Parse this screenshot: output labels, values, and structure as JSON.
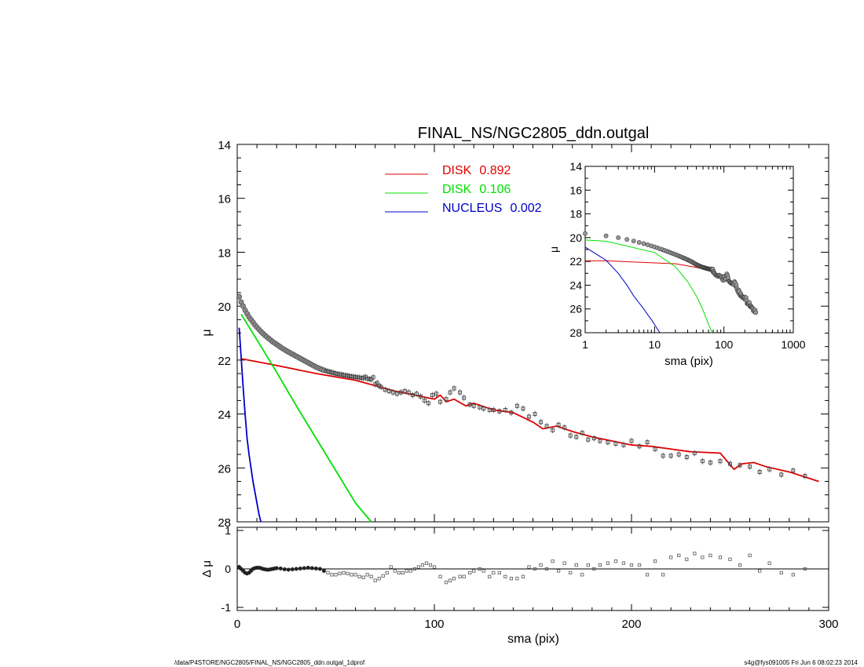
{
  "colors": {
    "disk1": "#e00000",
    "disk2": "#00e000",
    "nucleus": "#0000c8",
    "data": "#555555"
  },
  "chart_data": [
    {
      "type": "scatter",
      "panel": "main",
      "title": "FINAL_NS/NGC2805_ddn.outgal",
      "ylabel": "μ",
      "xlim": [
        0,
        300
      ],
      "ylim": [
        28,
        14
      ],
      "y_inverted": true,
      "yticks": [
        "14",
        "16",
        "18",
        "20",
        "22",
        "24",
        "26",
        "28"
      ],
      "legend": [
        {
          "label": "DISK",
          "value": "0.892",
          "color": "#e00000"
        },
        {
          "label": "DISK",
          "value": "0.106",
          "color": "#00e000"
        },
        {
          "label": "NUCLEUS",
          "value": "0.002",
          "color": "#0000c8"
        }
      ],
      "data_points": {
        "x": [
          1,
          2,
          3,
          4,
          5,
          6,
          7,
          8,
          9,
          10,
          11,
          12,
          13,
          14,
          15,
          16,
          17,
          18,
          19,
          20,
          21,
          22,
          23,
          24,
          25,
          26,
          27,
          28,
          29,
          30,
          31,
          32,
          33,
          34,
          35,
          36,
          37,
          38,
          39,
          40,
          41,
          42,
          43,
          44,
          45,
          46,
          47,
          48,
          49,
          50,
          51,
          52,
          53,
          54,
          55,
          56,
          57,
          58,
          59,
          60,
          61,
          62,
          63,
          64,
          65,
          66,
          67,
          68,
          69,
          70,
          71,
          72,
          73,
          75,
          77,
          79,
          81,
          83,
          85,
          87,
          89,
          91,
          93,
          95,
          97,
          99,
          101,
          103,
          106,
          108,
          110,
          113,
          115,
          118,
          120,
          123,
          125,
          128,
          130,
          133,
          136,
          139,
          142,
          145,
          148,
          151,
          154,
          157,
          160,
          163,
          166,
          169,
          172,
          175,
          178,
          181,
          184,
          188,
          192,
          196,
          200,
          204,
          208,
          212,
          216,
          220,
          224,
          228,
          232,
          236,
          240,
          245,
          250,
          255,
          260,
          265,
          270,
          276,
          282,
          288
        ],
        "y": [
          19.65,
          19.85,
          20.0,
          20.15,
          20.28,
          20.4,
          20.5,
          20.6,
          20.7,
          20.78,
          20.86,
          20.94,
          21.01,
          21.08,
          21.14,
          21.2,
          21.26,
          21.32,
          21.37,
          21.42,
          21.47,
          21.52,
          21.57,
          21.61,
          21.66,
          21.7,
          21.74,
          21.78,
          21.82,
          21.86,
          21.9,
          21.94,
          21.98,
          22.02,
          22.06,
          22.1,
          22.14,
          22.18,
          22.22,
          22.26,
          22.29,
          22.32,
          22.35,
          22.38,
          22.4,
          22.42,
          22.44,
          22.46,
          22.48,
          22.5,
          22.52,
          22.53,
          22.54,
          22.56,
          22.57,
          22.58,
          22.6,
          22.61,
          22.62,
          22.63,
          22.64,
          22.65,
          22.66,
          22.67,
          22.62,
          22.69,
          22.7,
          22.72,
          22.64,
          22.9,
          22.85,
          22.95,
          23.0,
          23.1,
          23.15,
          23.2,
          23.25,
          23.2,
          23.15,
          23.2,
          23.3,
          23.25,
          23.35,
          23.5,
          23.6,
          23.3,
          23.25,
          23.55,
          23.45,
          23.2,
          23.05,
          23.2,
          23.4,
          23.65,
          23.7,
          23.75,
          23.8,
          23.85,
          23.85,
          23.9,
          23.85,
          23.95,
          23.7,
          23.8,
          24.1,
          24.0,
          24.3,
          24.45,
          24.6,
          24.4,
          24.5,
          24.8,
          24.85,
          24.7,
          24.95,
          24.9,
          25.0,
          25.05,
          25.1,
          25.15,
          25.0,
          25.2,
          25.05,
          25.3,
          25.55,
          25.55,
          25.5,
          25.6,
          25.45,
          25.75,
          25.8,
          25.75,
          25.85,
          25.9,
          25.95,
          26.15,
          26.05,
          26.25,
          26.1,
          26.3
        ],
        "yerr_visible": true
      },
      "series": [
        {
          "name": "DISK 0.892",
          "color": "#e00000",
          "x": [
            2,
            20,
            40,
            60,
            70,
            80,
            90,
            100,
            103,
            106,
            110,
            116,
            120,
            130,
            140,
            150,
            155,
            162,
            170,
            180,
            190,
            200,
            210,
            220,
            230,
            245,
            252,
            256,
            262,
            268,
            280,
            295
          ],
          "y": [
            21.95,
            22.2,
            22.5,
            22.75,
            22.95,
            23.15,
            23.3,
            23.45,
            23.3,
            23.55,
            23.45,
            23.7,
            23.6,
            23.85,
            23.95,
            24.3,
            24.55,
            24.45,
            24.65,
            24.85,
            25.0,
            25.15,
            25.2,
            25.3,
            25.4,
            25.45,
            26.05,
            25.85,
            25.8,
            25.95,
            26.15,
            26.5
          ]
        },
        {
          "name": "DISK 0.106",
          "color": "#00e000",
          "x": [
            2,
            10,
            20,
            30,
            40,
            50,
            60,
            68
          ],
          "y": [
            20.3,
            21.25,
            22.45,
            23.7,
            24.9,
            26.1,
            27.3,
            28.0
          ]
        },
        {
          "name": "NUCLEUS 0.002",
          "color": "#0000c8",
          "x": [
            1,
            2,
            3,
            4,
            5,
            6,
            7,
            8,
            9,
            10,
            11,
            12
          ],
          "y": [
            20.8,
            21.9,
            23.0,
            24.0,
            24.9,
            25.5,
            26.0,
            26.5,
            26.9,
            27.3,
            27.7,
            28.0
          ]
        }
      ]
    },
    {
      "type": "scatter",
      "panel": "residuals",
      "ylabel": "Δ μ",
      "xlabel": "sma (pix)",
      "xlim": [
        0,
        300
      ],
      "ylim": [
        -1,
        1
      ],
      "xticks": [
        "0",
        "100",
        "200",
        "300"
      ],
      "yticks": [
        "1",
        "0",
        "-1"
      ],
      "data_points": {
        "x": [
          1,
          2,
          3,
          4,
          5,
          6,
          7,
          8,
          9,
          10,
          11,
          12,
          13,
          14,
          15,
          16,
          17,
          18,
          19,
          20,
          22,
          24,
          26,
          28,
          30,
          32,
          34,
          36,
          38,
          40,
          42,
          44,
          46,
          48,
          50,
          52,
          54,
          56,
          58,
          60,
          62,
          64,
          66,
          68,
          70,
          72,
          74,
          76,
          78,
          80,
          82,
          84,
          86,
          88,
          90,
          92,
          94,
          96,
          98,
          100,
          103,
          106,
          108,
          110,
          113,
          115,
          118,
          120,
          123,
          125,
          128,
          130,
          133,
          136,
          139,
          142,
          145,
          148,
          151,
          154,
          157,
          160,
          163,
          166,
          169,
          172,
          175,
          178,
          181,
          184,
          188,
          192,
          196,
          200,
          204,
          208,
          212,
          216,
          220,
          224,
          228,
          232,
          236,
          240,
          245,
          250,
          255,
          260,
          265,
          270,
          276,
          282,
          288
        ],
        "y": [
          0.05,
          0.0,
          -0.05,
          -0.1,
          -0.12,
          -0.1,
          -0.05,
          0.0,
          0.02,
          0.03,
          0.03,
          0.02,
          0.0,
          -0.01,
          -0.02,
          -0.02,
          -0.01,
          0.0,
          0.01,
          0.02,
          0.01,
          -0.01,
          -0.02,
          -0.01,
          0.0,
          0.01,
          0.02,
          0.03,
          0.02,
          0.01,
          0.0,
          -0.05,
          -0.1,
          -0.15,
          -0.15,
          -0.12,
          -0.1,
          -0.12,
          -0.15,
          -0.15,
          -0.2,
          -0.22,
          -0.15,
          -0.2,
          -0.3,
          -0.25,
          -0.18,
          -0.1,
          0.05,
          -0.05,
          -0.1,
          -0.1,
          -0.05,
          -0.05,
          0.0,
          0.05,
          0.1,
          0.15,
          0.1,
          0.05,
          -0.2,
          -0.35,
          -0.3,
          -0.25,
          -0.2,
          -0.2,
          -0.1,
          -0.05,
          0.0,
          -0.05,
          -0.2,
          -0.1,
          -0.1,
          -0.2,
          -0.25,
          -0.25,
          -0.2,
          0.05,
          0.0,
          0.1,
          0.0,
          0.2,
          -0.05,
          0.15,
          -0.1,
          0.1,
          -0.15,
          0.1,
          0.0,
          0.1,
          0.15,
          0.2,
          0.15,
          0.1,
          0.1,
          -0.15,
          0.2,
          -0.15,
          0.3,
          0.35,
          0.25,
          0.4,
          0.3,
          0.35,
          0.3,
          0.25,
          0.1,
          0.35,
          -0.05,
          0.15,
          -0.1,
          -0.15,
          0.0
        ]
      }
    },
    {
      "type": "scatter",
      "panel": "inset",
      "ylabel": "μ",
      "xlabel": "sma (pix)",
      "xscale": "log",
      "xlim": [
        1,
        1000
      ],
      "ylim": [
        28,
        14
      ],
      "y_inverted": true,
      "xticks": [
        "1",
        "10",
        "100",
        "1000"
      ],
      "yticks": [
        "14",
        "16",
        "18",
        "20",
        "22",
        "24",
        "26",
        "28"
      ]
    }
  ],
  "footer": {
    "left": "/data/P4STORE/NGC2805/FINAL_NS/NGC2805_ddn.outgal_1dprof",
    "right": "s4g@fys091005  Fri Jun  6 08:02:23 2014"
  }
}
